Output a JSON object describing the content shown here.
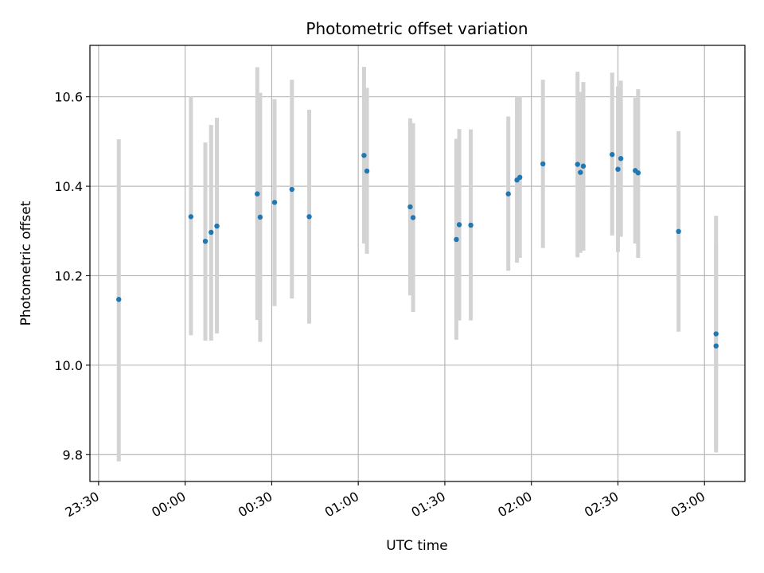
{
  "chart_data": {
    "type": "scatter",
    "title": "Photometric offset variation",
    "xlabel": "UTC time",
    "ylabel": "Photometric offset",
    "x_axis_kind": "time",
    "xlim": [
      "23:27",
      "03:14"
    ],
    "ylim": [
      9.74,
      10.715
    ],
    "x_ticks": [
      "23:30",
      "00:00",
      "00:30",
      "01:00",
      "01:30",
      "02:00",
      "02:30",
      "03:00"
    ],
    "y_ticks": [
      9.8,
      10.0,
      10.2,
      10.4,
      10.6
    ],
    "y_tick_labels": [
      "9.8",
      "10.0",
      "10.2",
      "10.4",
      "10.6"
    ],
    "grid": true,
    "legend": "none",
    "colors": {
      "point": "#1f77b4",
      "errorbar": "#d3d3d3",
      "grid": "#b0b0b0"
    },
    "points": [
      {
        "t": "23:37",
        "y": 10.147,
        "ylo": 9.785,
        "yhi": 10.505
      },
      {
        "t": "00:02",
        "y": 10.332,
        "ylo": 10.067,
        "yhi": 10.6
      },
      {
        "t": "00:07",
        "y": 10.277,
        "ylo": 10.055,
        "yhi": 10.498
      },
      {
        "t": "00:09",
        "y": 10.297,
        "ylo": 10.055,
        "yhi": 10.537
      },
      {
        "t": "00:11",
        "y": 10.311,
        "ylo": 10.071,
        "yhi": 10.553
      },
      {
        "t": "00:25",
        "y": 10.383,
        "ylo": 10.101,
        "yhi": 10.666
      },
      {
        "t": "00:26",
        "y": 10.331,
        "ylo": 10.052,
        "yhi": 10.609
      },
      {
        "t": "00:31",
        "y": 10.364,
        "ylo": 10.132,
        "yhi": 10.595
      },
      {
        "t": "00:37",
        "y": 10.393,
        "ylo": 10.149,
        "yhi": 10.638
      },
      {
        "t": "00:43",
        "y": 10.332,
        "ylo": 10.093,
        "yhi": 10.571
      },
      {
        "t": "01:02",
        "y": 10.469,
        "ylo": 10.272,
        "yhi": 10.667
      },
      {
        "t": "01:03",
        "y": 10.434,
        "ylo": 10.249,
        "yhi": 10.62
      },
      {
        "t": "01:18",
        "y": 10.354,
        "ylo": 10.156,
        "yhi": 10.552
      },
      {
        "t": "01:19",
        "y": 10.33,
        "ylo": 10.119,
        "yhi": 10.541
      },
      {
        "t": "01:34",
        "y": 10.281,
        "ylo": 10.057,
        "yhi": 10.506
      },
      {
        "t": "01:35",
        "y": 10.314,
        "ylo": 10.1,
        "yhi": 10.528
      },
      {
        "t": "01:39",
        "y": 10.313,
        "ylo": 10.1,
        "yhi": 10.527
      },
      {
        "t": "01:52",
        "y": 10.383,
        "ylo": 10.211,
        "yhi": 10.556
      },
      {
        "t": "01:55",
        "y": 10.414,
        "ylo": 10.229,
        "yhi": 10.6
      },
      {
        "t": "01:56",
        "y": 10.42,
        "ylo": 10.24,
        "yhi": 10.6
      },
      {
        "t": "02:04",
        "y": 10.45,
        "ylo": 10.262,
        "yhi": 10.638
      },
      {
        "t": "02:16",
        "y": 10.449,
        "ylo": 10.241,
        "yhi": 10.656
      },
      {
        "t": "02:17",
        "y": 10.431,
        "ylo": 10.251,
        "yhi": 10.611
      },
      {
        "t": "02:18",
        "y": 10.445,
        "ylo": 10.256,
        "yhi": 10.633
      },
      {
        "t": "02:28",
        "y": 10.471,
        "ylo": 10.29,
        "yhi": 10.654
      },
      {
        "t": "02:30",
        "y": 10.438,
        "ylo": 10.253,
        "yhi": 10.623
      },
      {
        "t": "02:31",
        "y": 10.462,
        "ylo": 10.287,
        "yhi": 10.636
      },
      {
        "t": "02:36",
        "y": 10.435,
        "ylo": 10.272,
        "yhi": 10.598
      },
      {
        "t": "02:37",
        "y": 10.43,
        "ylo": 10.24,
        "yhi": 10.617
      },
      {
        "t": "02:51",
        "y": 10.299,
        "ylo": 10.075,
        "yhi": 10.523
      },
      {
        "t": "03:04",
        "y": 10.043,
        "ylo": 9.814,
        "yhi": 10.271
      },
      {
        "t": "03:04",
        "y": 10.07,
        "ylo": 9.805,
        "yhi": 10.334
      }
    ]
  }
}
